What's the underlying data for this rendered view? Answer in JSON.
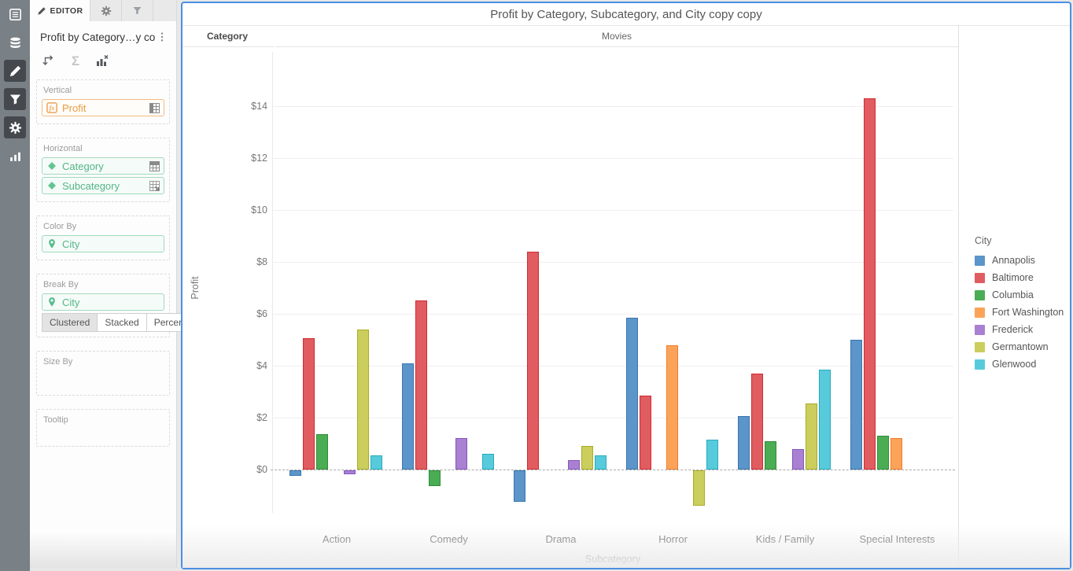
{
  "rail": {
    "icons": [
      "contents",
      "datasets",
      "edit",
      "filter",
      "format",
      "visualization-gallery"
    ],
    "active_icons": [
      "edit",
      "filter",
      "format"
    ]
  },
  "editor_panel": {
    "tabs": {
      "editor": "EDITOR"
    },
    "title": "Profit by Category…y copy",
    "tools": [
      "swap-axes",
      "sigma",
      "remove-metric"
    ],
    "sections": {
      "vertical": {
        "label": "Vertical",
        "field": "Profit"
      },
      "horizontal": {
        "label": "Horizontal",
        "fields": [
          "Category",
          "Subcategory"
        ]
      },
      "color_by": {
        "label": "Color By",
        "field": "City"
      },
      "break_by": {
        "label": "Break By",
        "field": "City",
        "modes": [
          "Clustered",
          "Stacked",
          "Percent"
        ],
        "active_mode": "Clustered"
      },
      "size_by": {
        "label": "Size By"
      },
      "tooltip": {
        "label": "Tooltip"
      }
    }
  },
  "viz": {
    "column_header": "Category"
  },
  "chart_data": {
    "type": "bar",
    "title": "Profit by Category, Subcategory, and City copy copy",
    "group_header": "Movies",
    "xlabel": "Subcategory",
    "ylabel": "Profit",
    "categories": [
      "Action",
      "Comedy",
      "Drama",
      "Horror",
      "Kids / Family",
      "Special Interests"
    ],
    "series": [
      {
        "name": "Annapolis",
        "color": "#5b95c9",
        "border": "#3a76ae",
        "values": [
          -0.2,
          4.1,
          -1.2,
          5.85,
          2.05,
          5.0
        ]
      },
      {
        "name": "Baltimore",
        "color": "#e05c60",
        "border": "#d02b31",
        "values": [
          5.05,
          6.5,
          8.4,
          2.85,
          3.7,
          14.3
        ]
      },
      {
        "name": "Columbia",
        "color": "#4aad53",
        "border": "#2f8c3a",
        "values": [
          1.35,
          -0.6,
          null,
          null,
          1.1,
          1.3
        ]
      },
      {
        "name": "Fort Washington",
        "color": "#fca35a",
        "border": "#f07c28",
        "values": [
          null,
          null,
          null,
          4.8,
          null,
          1.2
        ]
      },
      {
        "name": "Frederick",
        "color": "#a980d2",
        "border": "#8756bd",
        "values": [
          -0.15,
          1.2,
          0.35,
          null,
          0.8,
          null
        ]
      },
      {
        "name": "Germantown",
        "color": "#cbce5d",
        "border": "#a8ac25",
        "values": [
          5.4,
          null,
          0.9,
          -1.35,
          2.55,
          null
        ]
      },
      {
        "name": "Glenwood",
        "color": "#57cbdb",
        "border": "#28abc0",
        "values": [
          0.55,
          0.6,
          0.55,
          1.15,
          3.85,
          null
        ]
      }
    ],
    "y_ticks": [
      0,
      2,
      4,
      6,
      8,
      10,
      12,
      14
    ],
    "y_tick_prefix": "$",
    "ylim": [
      -2.2,
      15.2
    ],
    "grid": true,
    "zero_line": "dashed",
    "legend": {
      "title": "City",
      "position": "right"
    }
  }
}
